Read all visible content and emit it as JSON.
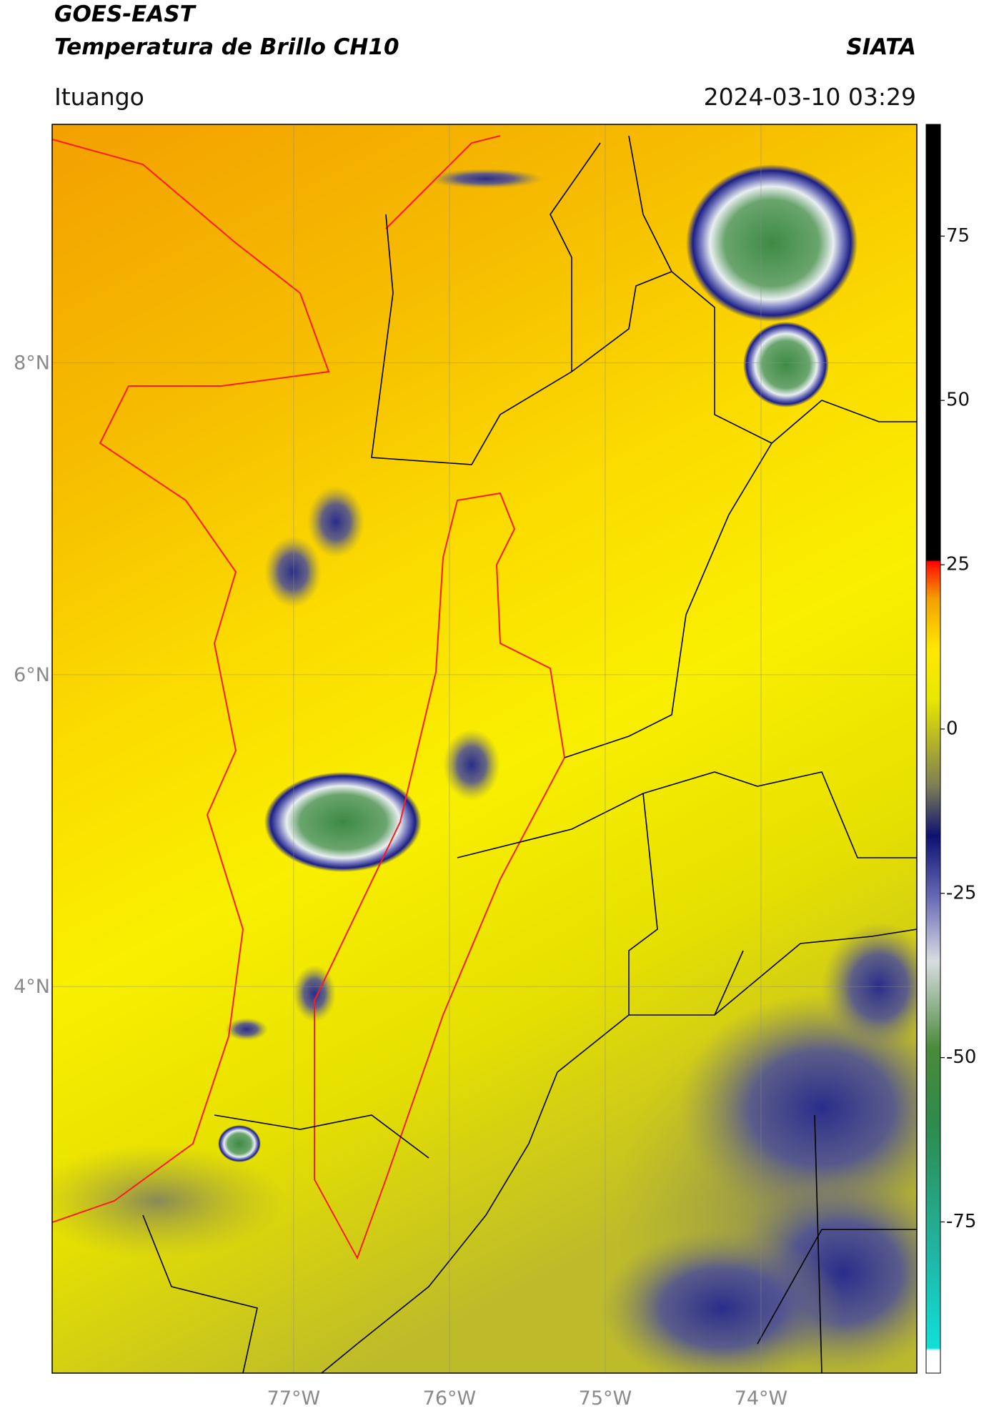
{
  "header": {
    "satellite": "GOES-EAST",
    "product": "Temperatura de Brillo CH10",
    "agency": "SIATA",
    "location": "Ituango",
    "datetime": "2024-03-10 03:29"
  },
  "map": {
    "lat_range": [
      1.52,
      9.53
    ],
    "lon_range": [
      -78.55,
      -73.0
    ],
    "lat_ticks": [
      {
        "value": 4,
        "label": "4°N"
      },
      {
        "value": 6,
        "label": "6°N"
      },
      {
        "value": 8,
        "label": "8°N"
      }
    ],
    "lon_ticks": [
      {
        "value": -77,
        "label": "77°W"
      },
      {
        "value": -76,
        "label": "76°W"
      },
      {
        "value": -75,
        "label": "75°W"
      },
      {
        "value": -74,
        "label": "74°W"
      }
    ]
  },
  "colorbar": {
    "range": [
      -98,
      92
    ],
    "ticks": [
      -75,
      -50,
      -25,
      0,
      25,
      50,
      75
    ]
  }
}
